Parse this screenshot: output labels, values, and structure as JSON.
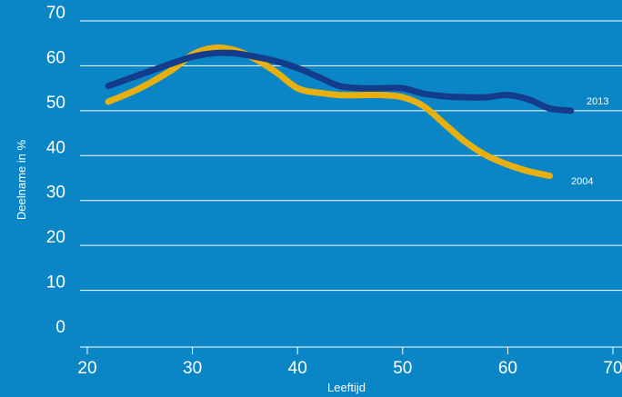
{
  "chart_data": {
    "type": "line",
    "xlabel": "Leeftijd",
    "ylabel": "Deelname in %",
    "xlim": [
      20,
      70
    ],
    "ylim": [
      0,
      70
    ],
    "xticks": [
      20,
      30,
      40,
      50,
      60,
      70
    ],
    "yticks": [
      0,
      10,
      20,
      30,
      40,
      50,
      60,
      70
    ],
    "grid": "horizontal",
    "series": [
      {
        "name": "2004",
        "color": "#e8b00f",
        "x": [
          22,
          25,
          28,
          30,
          32,
          34,
          36,
          38,
          40,
          42,
          44,
          46,
          48,
          50,
          52,
          54,
          56,
          58,
          60,
          62,
          64
        ],
        "y": [
          52,
          55,
          59,
          62.5,
          64,
          63.5,
          61.5,
          58.5,
          55,
          54,
          53.5,
          53.5,
          53.5,
          53,
          51,
          47,
          43,
          40,
          38,
          36.5,
          35.5
        ]
      },
      {
        "name": "2013",
        "color": "#143c8c",
        "x": [
          22,
          25,
          28,
          30,
          32,
          34,
          36,
          38,
          40,
          42,
          44,
          46,
          48,
          50,
          52,
          54,
          56,
          58,
          60,
          62,
          64,
          66
        ],
        "y": [
          55.5,
          58,
          60.5,
          62,
          62.8,
          62.8,
          62,
          61,
          59.5,
          57.5,
          55.5,
          55,
          55,
          55,
          53.8,
          53.2,
          53,
          53,
          53.5,
          52.5,
          50.5,
          50
        ]
      }
    ]
  }
}
